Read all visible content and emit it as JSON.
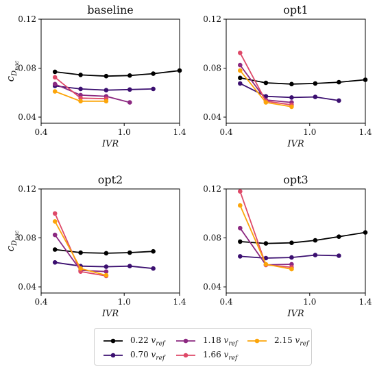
{
  "chart_data": [
    {
      "type": "line",
      "title": "baseline",
      "xlabel": "IVR",
      "ylabel": "c_D_nac",
      "xlim": [
        0.4,
        1.4
      ],
      "ylim": [
        0.035,
        0.12
      ],
      "xticks": [
        0.4,
        1.0,
        1.4
      ],
      "yticks": [
        0.04,
        0.08,
        0.12
      ],
      "xtick_labels": [
        "0.4",
        "1.0",
        "1.4"
      ],
      "ytick_labels": [
        "0.04",
        "0.08",
        "0.12"
      ],
      "series": [
        {
          "name": "0.22 v_ref",
          "x": [
            0.5,
            0.685,
            0.87,
            1.04,
            1.21,
            1.4
          ],
          "y": [
            0.077,
            0.0745,
            0.0735,
            0.074,
            0.0755,
            0.078
          ]
        },
        {
          "name": "0.70 v_ref",
          "x": [
            0.5,
            0.685,
            0.87,
            1.04,
            1.21
          ],
          "y": [
            0.0655,
            0.063,
            0.062,
            0.0625,
            0.063
          ]
        },
        {
          "name": "1.18 v_ref",
          "x": [
            0.5,
            0.685,
            0.87,
            1.04
          ],
          "y": [
            0.067,
            0.058,
            0.057,
            0.052
          ]
        },
        {
          "name": "1.66 v_ref",
          "x": [
            0.5,
            0.685,
            0.87
          ],
          "y": [
            0.0725,
            0.0555,
            0.055
          ]
        },
        {
          "name": "2.15 v_ref",
          "x": [
            0.5,
            0.685,
            0.87
          ],
          "y": [
            0.061,
            0.053,
            0.053
          ]
        }
      ]
    },
    {
      "type": "line",
      "title": "opt1",
      "xlabel": "IVR",
      "ylabel": "",
      "xlim": [
        0.4,
        1.4
      ],
      "ylim": [
        0.035,
        0.12
      ],
      "xticks": [
        0.4,
        1.0,
        1.4
      ],
      "yticks": [
        0.04,
        0.08,
        0.12
      ],
      "xtick_labels": [
        "0.4",
        "1.0",
        "1.4"
      ],
      "ytick_labels": [
        "0.04",
        "0.08",
        "0.12"
      ],
      "series": [
        {
          "name": "0.22 v_ref",
          "x": [
            0.5,
            0.685,
            0.87,
            1.04,
            1.21,
            1.4
          ],
          "y": [
            0.072,
            0.068,
            0.067,
            0.0675,
            0.0685,
            0.0705
          ]
        },
        {
          "name": "0.70 v_ref",
          "x": [
            0.5,
            0.685,
            0.87,
            1.04,
            1.21
          ],
          "y": [
            0.0675,
            0.057,
            0.056,
            0.0565,
            0.0535
          ]
        },
        {
          "name": "1.18 v_ref",
          "x": [
            0.5,
            0.685,
            0.87
          ],
          "y": [
            0.0825,
            0.054,
            0.052
          ]
        },
        {
          "name": "1.66 v_ref",
          "x": [
            0.5,
            0.685,
            0.87
          ],
          "y": [
            0.0925,
            0.053,
            0.05
          ]
        },
        {
          "name": "2.15 v_ref",
          "x": [
            0.5,
            0.685,
            0.87
          ],
          "y": [
            0.078,
            0.052,
            0.0485
          ]
        }
      ]
    },
    {
      "type": "line",
      "title": "opt2",
      "xlabel": "IVR",
      "ylabel": "c_D_nac",
      "xlim": [
        0.4,
        1.4
      ],
      "ylim": [
        0.035,
        0.12
      ],
      "xticks": [
        0.4,
        1.0,
        1.4
      ],
      "yticks": [
        0.04,
        0.08,
        0.12
      ],
      "xtick_labels": [
        "0.4",
        "1.0",
        "1.4"
      ],
      "ytick_labels": [
        "0.04",
        "0.08",
        "0.12"
      ],
      "series": [
        {
          "name": "0.22 v_ref",
          "x": [
            0.5,
            0.685,
            0.87,
            1.04,
            1.21
          ],
          "y": [
            0.0705,
            0.068,
            0.0675,
            0.068,
            0.069
          ]
        },
        {
          "name": "0.70 v_ref",
          "x": [
            0.5,
            0.685,
            0.87,
            1.04,
            1.21
          ],
          "y": [
            0.06,
            0.057,
            0.0565,
            0.057,
            0.055
          ]
        },
        {
          "name": "1.18 v_ref",
          "x": [
            0.5,
            0.685,
            0.87
          ],
          "y": [
            0.0825,
            0.0535,
            0.0525
          ]
        },
        {
          "name": "1.66 v_ref",
          "x": [
            0.5,
            0.685,
            0.87
          ],
          "y": [
            0.1,
            0.0525,
            0.049
          ]
        },
        {
          "name": "2.15 v_ref",
          "x": [
            0.5,
            0.685,
            0.87
          ],
          "y": [
            0.0935,
            0.055,
            0.0495
          ]
        }
      ]
    },
    {
      "type": "line",
      "title": "opt3",
      "xlabel": "IVR",
      "ylabel": "",
      "xlim": [
        0.4,
        1.4
      ],
      "ylim": [
        0.035,
        0.12
      ],
      "xticks": [
        0.4,
        1.0,
        1.4
      ],
      "yticks": [
        0.04,
        0.08,
        0.12
      ],
      "xtick_labels": [
        "0.4",
        "1.0",
        "1.4"
      ],
      "ytick_labels": [
        "0.04",
        "0.08",
        "0.12"
      ],
      "series": [
        {
          "name": "0.22 v_ref",
          "x": [
            0.5,
            0.685,
            0.87,
            1.04,
            1.21,
            1.4
          ],
          "y": [
            0.077,
            0.0755,
            0.076,
            0.078,
            0.081,
            0.0845
          ]
        },
        {
          "name": "0.70 v_ref",
          "x": [
            0.5,
            0.685,
            0.87,
            1.04,
            1.21
          ],
          "y": [
            0.065,
            0.0635,
            0.064,
            0.066,
            0.0655
          ]
        },
        {
          "name": "1.18 v_ref",
          "x": [
            0.5,
            0.685,
            0.87
          ],
          "y": [
            0.088,
            0.058,
            0.0585
          ]
        },
        {
          "name": "1.66 v_ref",
          "x": [
            0.5,
            0.685,
            0.87
          ],
          "y": [
            0.118,
            0.058,
            0.056
          ]
        },
        {
          "name": "2.15 v_ref",
          "x": [
            0.5,
            0.685,
            0.87
          ],
          "y": [
            0.1065,
            0.0585,
            0.0545
          ]
        }
      ]
    }
  ],
  "series_colors": [
    "#000000",
    "#3b0f70",
    "#8c2981",
    "#de4968",
    "#fca50a"
  ],
  "legend": {
    "placement": "bottom-center",
    "items": [
      {
        "label": "0.22 v_ref",
        "color": "#000000"
      },
      {
        "label": "1.18 v_ref",
        "color": "#8c2981"
      },
      {
        "label": "2.15 v_ref",
        "color": "#fca50a"
      },
      {
        "label": "0.70 v_ref",
        "color": "#3b0f70"
      },
      {
        "label": "1.66 v_ref",
        "color": "#de4968"
      }
    ]
  }
}
